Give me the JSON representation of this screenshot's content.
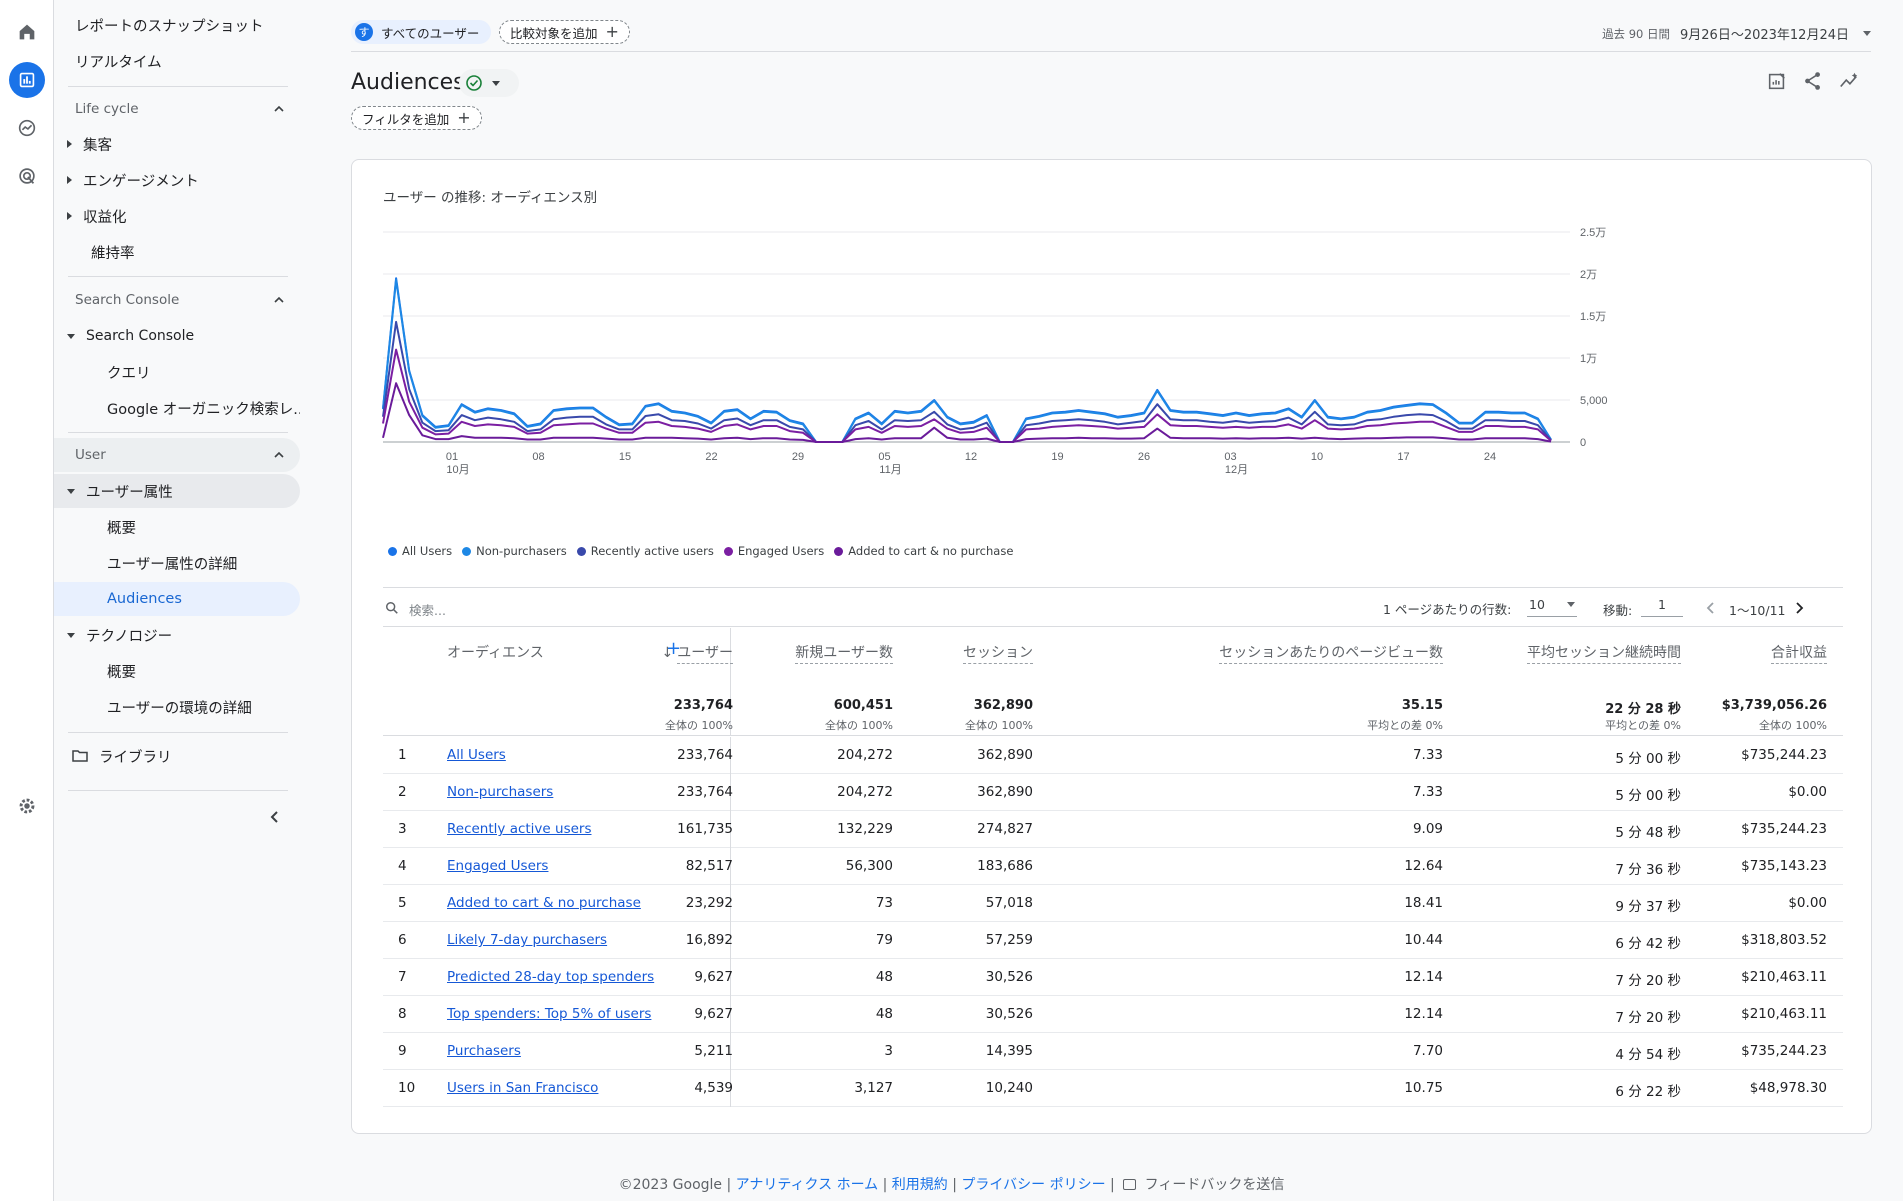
{
  "colors": {
    "accent": "#1a73e8",
    "series": [
      "#1a73e8",
      "#1e88e5",
      "#3949ab",
      "#7b1fa2",
      "#6a1b9a"
    ]
  },
  "sidebar": {
    "top_items": [
      "レポートのスナップショット",
      "リアルタイム"
    ],
    "lifecycle": {
      "title": "Life cycle",
      "items": [
        "集客",
        "エンゲージメント",
        "収益化",
        "維持率"
      ]
    },
    "search_console": {
      "title": "Search Console",
      "group": "Search Console",
      "items": [
        "クエリ",
        "Google オーガニック検索レ..."
      ]
    },
    "user": {
      "title": "User",
      "group1": "ユーザー属性",
      "group1_items": [
        "概要",
        "ユーザー属性の詳細",
        "Audiences"
      ],
      "group2": "テクノロジー",
      "group2_items": [
        "概要",
        "ユーザーの環境の詳細"
      ]
    },
    "library": "ライブラリ"
  },
  "header": {
    "user_chip_initial": "す",
    "user_chip": "すべてのユーザー",
    "compare_chip": "比較対象を追加",
    "date_prefix": "過去 90 日間",
    "date_range": "9月26日～2023年12月24日",
    "title": "Audiences",
    "filter_chip": "フィルタを追加"
  },
  "chart_data": {
    "type": "line",
    "title": "ユーザー の推移: オーディエンス別",
    "y_ticks": [
      "2.5万",
      "2万",
      "1.5万",
      "1万",
      "5,000",
      "0"
    ],
    "ylim": [
      0,
      25000
    ],
    "x_ticks": [
      {
        "day": "01",
        "month": "10月"
      },
      {
        "day": "08",
        "month": ""
      },
      {
        "day": "15",
        "month": ""
      },
      {
        "day": "22",
        "month": ""
      },
      {
        "day": "29",
        "month": ""
      },
      {
        "day": "05",
        "month": "11月"
      },
      {
        "day": "12",
        "month": ""
      },
      {
        "day": "19",
        "month": ""
      },
      {
        "day": "26",
        "month": ""
      },
      {
        "day": "03",
        "month": "12月"
      },
      {
        "day": "10",
        "month": ""
      },
      {
        "day": "17",
        "month": ""
      },
      {
        "day": "24",
        "month": ""
      }
    ],
    "series": [
      {
        "name": "All Users",
        "values": [
          4000,
          19500,
          8500,
          3200,
          1800,
          2000,
          4500,
          3600,
          4000,
          3800,
          3400,
          1900,
          2200,
          3800,
          4000,
          4100,
          4100,
          3000,
          2100,
          2200,
          4300,
          4600,
          3700,
          3500,
          3100,
          2300,
          3700,
          3900,
          2800,
          3700,
          3600,
          2600,
          2200,
          0,
          0,
          0,
          2800,
          3500,
          2200,
          3700,
          3500,
          3700,
          5000,
          3000,
          2200,
          2400,
          3200,
          0,
          0,
          2800,
          3100,
          3500,
          3600,
          3800,
          3600,
          3400,
          3000,
          3200,
          3500,
          6200,
          3800,
          3600,
          3600,
          3400,
          3200,
          3500,
          3200,
          3400,
          3500,
          4000,
          3000,
          5000,
          3000,
          2800,
          3000,
          3600,
          3800,
          4200,
          4400,
          4600,
          4500,
          3500,
          2300,
          2300,
          3600,
          3600,
          3500,
          3500,
          2800,
          300
        ]
      },
      {
        "name": "Non-purchasers",
        "values": [
          3900,
          19300,
          8400,
          3100,
          1700,
          1900,
          4400,
          3500,
          3900,
          3700,
          3300,
          1800,
          2100,
          3700,
          3900,
          4000,
          4000,
          2900,
          2000,
          2100,
          4200,
          4500,
          3600,
          3400,
          3000,
          2200,
          3600,
          3800,
          2700,
          3600,
          3500,
          2500,
          2100,
          0,
          0,
          0,
          2700,
          3400,
          2100,
          3600,
          3400,
          3600,
          4900,
          2900,
          2100,
          2300,
          3100,
          0,
          0,
          2700,
          3000,
          3400,
          3500,
          3700,
          3500,
          3300,
          2900,
          3100,
          3400,
          6100,
          3700,
          3500,
          3500,
          3300,
          3100,
          3400,
          3100,
          3300,
          3400,
          3900,
          2900,
          4900,
          2900,
          2700,
          2900,
          3500,
          3700,
          4100,
          4300,
          4500,
          4400,
          3400,
          2200,
          2200,
          3500,
          3500,
          3400,
          3400,
          2700,
          250
        ]
      },
      {
        "name": "Recently active users",
        "values": [
          3000,
          14300,
          6300,
          2300,
          1300,
          1400,
          3200,
          2600,
          2900,
          2700,
          2400,
          1300,
          1500,
          2700,
          2900,
          3000,
          3000,
          2100,
          1500,
          1500,
          3100,
          3300,
          2600,
          2500,
          2200,
          1600,
          2600,
          2800,
          2000,
          2600,
          2600,
          1800,
          1500,
          0,
          0,
          0,
          2000,
          2500,
          1500,
          2600,
          2500,
          2600,
          3600,
          2100,
          1500,
          1700,
          2300,
          0,
          0,
          2000,
          2200,
          2500,
          2600,
          2700,
          2600,
          2400,
          2100,
          2300,
          2500,
          4500,
          2700,
          2600,
          2600,
          2400,
          2300,
          2500,
          2300,
          2400,
          2500,
          2900,
          2100,
          3600,
          2100,
          2000,
          2100,
          2600,
          2700,
          3000,
          3200,
          3300,
          3200,
          2500,
          1600,
          1600,
          2600,
          2600,
          2500,
          2500,
          2000,
          200
        ]
      },
      {
        "name": "Engaged Users",
        "values": [
          2200,
          11000,
          4800,
          1700,
          900,
          1000,
          2400,
          1900,
          2100,
          2000,
          1800,
          1000,
          1100,
          2000,
          2100,
          2200,
          2200,
          1600,
          1100,
          1100,
          2300,
          2400,
          1900,
          1800,
          1600,
          1200,
          1900,
          2100,
          1500,
          1900,
          1900,
          1300,
          1100,
          0,
          0,
          0,
          1500,
          1800,
          1100,
          1900,
          1800,
          1900,
          2700,
          1600,
          1100,
          1200,
          1700,
          0,
          0,
          1500,
          1600,
          1800,
          1900,
          2000,
          1900,
          1800,
          1600,
          1700,
          1800,
          3300,
          2000,
          1900,
          1900,
          1800,
          1700,
          1800,
          1700,
          1800,
          1800,
          2100,
          1600,
          2600,
          1600,
          1500,
          1600,
          1900,
          2000,
          2200,
          2300,
          2400,
          2400,
          1800,
          1200,
          1200,
          1900,
          1900,
          1800,
          1800,
          1500,
          150
        ]
      },
      {
        "name": "Added to cart & no purchase",
        "values": [
          500,
          7000,
          3200,
          800,
          350,
          350,
          700,
          500,
          500,
          500,
          450,
          300,
          300,
          500,
          500,
          500,
          500,
          400,
          300,
          300,
          500,
          500,
          500,
          450,
          400,
          300,
          450,
          500,
          350,
          450,
          450,
          300,
          250,
          0,
          0,
          0,
          350,
          450,
          300,
          450,
          450,
          450,
          1700,
          500,
          300,
          300,
          400,
          0,
          0,
          350,
          400,
          450,
          450,
          500,
          450,
          450,
          400,
          400,
          450,
          1600,
          500,
          450,
          450,
          450,
          400,
          450,
          400,
          450,
          450,
          500,
          400,
          500,
          400,
          350,
          400,
          450,
          450,
          500,
          550,
          550,
          550,
          450,
          300,
          300,
          450,
          450,
          450,
          450,
          350,
          50
        ]
      }
    ]
  },
  "table": {
    "search_placeholder": "検索...",
    "rows_per_page_label": "1 ページあたりの行数:",
    "rows_per_page": "10",
    "goto_label": "移動:",
    "goto_value": "1",
    "pager": "1～10/11",
    "columns": [
      "オーディエンス",
      "ユーザー",
      "新規ユーザー数",
      "セッション",
      "セッションあたりのページビュー数",
      "平均セッション継続時間",
      "合計収益"
    ],
    "totals": [
      "233,764",
      "600,451",
      "362,890",
      "35.15",
      "22 分 28 秒",
      "$3,739,056.26"
    ],
    "totals_sub": [
      "全体の 100%",
      "全体の 100%",
      "全体の 100%",
      "平均との差 0%",
      "平均との差 0%",
      "全体の 100%"
    ],
    "rows": [
      {
        "idx": "1",
        "name": "All Users",
        "v": [
          "233,764",
          "204,272",
          "362,890",
          "7.33",
          "5 分 00 秒",
          "$735,244.23"
        ]
      },
      {
        "idx": "2",
        "name": "Non-purchasers",
        "v": [
          "233,764",
          "204,272",
          "362,890",
          "7.33",
          "5 分 00 秒",
          "$0.00"
        ]
      },
      {
        "idx": "3",
        "name": "Recently active users",
        "v": [
          "161,735",
          "132,229",
          "274,827",
          "9.09",
          "5 分 48 秒",
          "$735,244.23"
        ]
      },
      {
        "idx": "4",
        "name": "Engaged Users",
        "v": [
          "82,517",
          "56,300",
          "183,686",
          "12.64",
          "7 分 36 秒",
          "$735,143.23"
        ]
      },
      {
        "idx": "5",
        "name": "Added to cart & no purchase",
        "v": [
          "23,292",
          "73",
          "57,018",
          "18.41",
          "9 分 37 秒",
          "$0.00"
        ]
      },
      {
        "idx": "6",
        "name": "Likely 7-day purchasers",
        "v": [
          "16,892",
          "79",
          "57,259",
          "10.44",
          "6 分 42 秒",
          "$318,803.52"
        ]
      },
      {
        "idx": "7",
        "name": "Predicted 28-day top spenders",
        "v": [
          "9,627",
          "48",
          "30,526",
          "12.14",
          "7 分 20 秒",
          "$210,463.11"
        ]
      },
      {
        "idx": "8",
        "name": "Top spenders: Top 5% of users",
        "v": [
          "9,627",
          "48",
          "30,526",
          "12.14",
          "7 分 20 秒",
          "$210,463.11"
        ]
      },
      {
        "idx": "9",
        "name": "Purchasers",
        "v": [
          "5,211",
          "3",
          "14,395",
          "7.70",
          "4 分 54 秒",
          "$735,244.23"
        ]
      },
      {
        "idx": "10",
        "name": "Users in San Francisco",
        "v": [
          "4,539",
          "3,127",
          "10,240",
          "10.75",
          "6 分 22 秒",
          "$48,978.30"
        ]
      }
    ]
  },
  "footer": {
    "copyright": "©2023 Google",
    "links": [
      "アナリティクス ホーム",
      "利用規約",
      "プライバシー ポリシー"
    ],
    "feedback": "フィードバックを送信"
  }
}
